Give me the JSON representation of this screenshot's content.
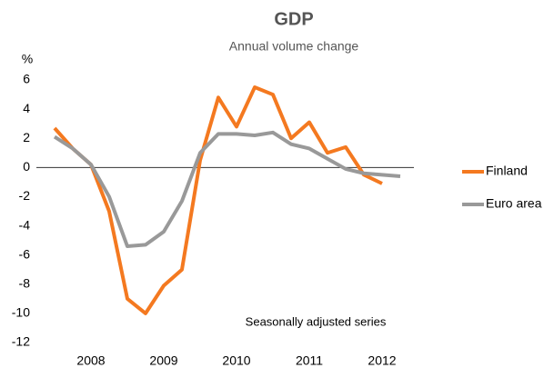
{
  "chart_data": {
    "type": "line",
    "title": "GDP",
    "subtitle": "Annual volume change",
    "y_axis_label": "%",
    "annotation": "Seasonally adjusted series",
    "categories": [
      null,
      null,
      "2008",
      null,
      null,
      null,
      "2009",
      null,
      null,
      null,
      "2010",
      null,
      null,
      null,
      "2011",
      null,
      null,
      null,
      "2012",
      null
    ],
    "series": [
      {
        "name": "Finland",
        "color": "#f47920",
        "values": [
          2.7,
          1.3,
          0.2,
          -3,
          -9,
          -10,
          -8.1,
          -7,
          0.5,
          4.8,
          2.8,
          5.5,
          5,
          2,
          3.1,
          1,
          1.4,
          -0.5,
          -1.1,
          null
        ]
      },
      {
        "name": "Euro area",
        "color": "#999999",
        "values": [
          2.1,
          1.3,
          0.2,
          -2,
          -5.4,
          -5.3,
          -4.4,
          -2.3,
          1,
          2.3,
          2.3,
          2.2,
          2.4,
          1.6,
          1.3,
          0.6,
          -0.1,
          -0.4,
          -0.5,
          -0.6
        ]
      }
    ],
    "ylim": [
      -12,
      6
    ],
    "yticks": [
      -12,
      -10,
      -8,
      -6,
      -4,
      -2,
      0,
      2,
      4,
      6
    ],
    "grid": false,
    "legend": "right"
  }
}
